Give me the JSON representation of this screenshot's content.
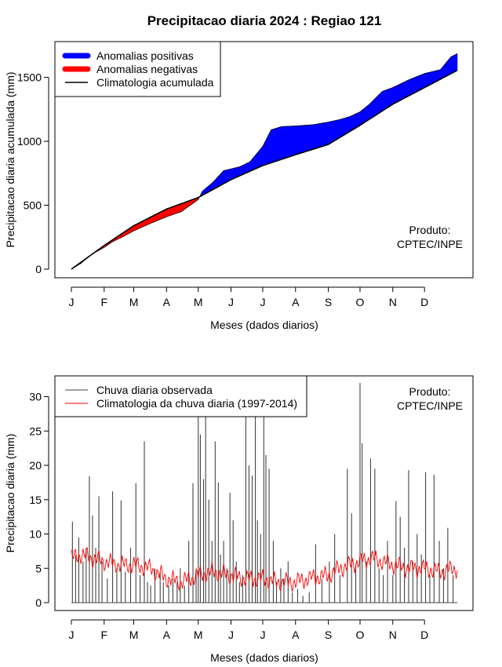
{
  "title": "Precipitacao diaria 2024 : Regiao 121",
  "colors": {
    "positive": "#0000ff",
    "negative": "#ff0000",
    "observed": "#444444",
    "climatology": "#ff0000",
    "line": "#000000"
  },
  "chart_data": [
    {
      "type": "area",
      "xlabel": "Meses (dados diarios)",
      "ylabel": "Precipitacao diaria acumulada (mm)",
      "month_ticks": [
        "J",
        "F",
        "M",
        "A",
        "M",
        "J",
        "J",
        "A",
        "S",
        "O",
        "N",
        "D"
      ],
      "month_start_days": [
        1,
        32,
        60,
        91,
        121,
        152,
        182,
        213,
        244,
        274,
        305,
        335
      ],
      "xlim": [
        1,
        366
      ],
      "ylim": [
        0,
        1700
      ],
      "yticks": [
        0,
        500,
        1000,
        1500
      ],
      "legend_position": "top-left",
      "legend": [
        "Anomalias positivas",
        "Anomalias negativas",
        "Climatologia acumulada"
      ],
      "annotation": [
        "Produto:",
        "CPTEC/INPE"
      ],
      "climatology_cumulative": {
        "day": [
          1,
          32,
          60,
          91,
          121,
          152,
          182,
          213,
          244,
          274,
          305,
          335,
          366
        ],
        "value": [
          0,
          185,
          340,
          470,
          560,
          700,
          810,
          895,
          975,
          1125,
          1290,
          1420,
          1555
        ]
      },
      "observed_cumulative": {
        "day": [
          1,
          10,
          20,
          32,
          40,
          50,
          60,
          75,
          91,
          105,
          121,
          125,
          135,
          145,
          160,
          170,
          182,
          190,
          200,
          213,
          230,
          244,
          255,
          265,
          274,
          283,
          295,
          305,
          320,
          335,
          350,
          360,
          366
        ],
        "value": [
          0,
          45,
          115,
          170,
          215,
          255,
          300,
          355,
          410,
          450,
          545,
          610,
          680,
          770,
          800,
          840,
          960,
          1090,
          1115,
          1120,
          1130,
          1150,
          1170,
          1195,
          1230,
          1290,
          1390,
          1420,
          1480,
          1530,
          1560,
          1660,
          1685
        ]
      }
    },
    {
      "type": "bar",
      "xlabel": "Meses (dados diarios)",
      "ylabel": "Precipitacao diaria (mm)",
      "month_ticks": [
        "J",
        "F",
        "M",
        "A",
        "M",
        "J",
        "J",
        "A",
        "S",
        "O",
        "N",
        "D"
      ],
      "month_start_days": [
        1,
        32,
        60,
        91,
        121,
        152,
        182,
        213,
        244,
        274,
        305,
        335
      ],
      "xlim": [
        1,
        366
      ],
      "ylim": [
        0,
        32
      ],
      "yticks": [
        0,
        5,
        10,
        15,
        20,
        25,
        30
      ],
      "legend_position": "top-left",
      "legend": [
        "Chuva diaria observada",
        "Climatologia da chuva diaria (1997-2014)"
      ],
      "annotation": [
        "Produto:",
        "CPTEC/INPE"
      ],
      "observed_daily": {
        "day": [
          2,
          5,
          8,
          12,
          15,
          18,
          21,
          24,
          27,
          30,
          35,
          40,
          44,
          48,
          52,
          57,
          62,
          66,
          70,
          73,
          76,
          80,
          85,
          88,
          93,
          97,
          101,
          104,
          108,
          112,
          116,
          119,
          121,
          123,
          126,
          128,
          131,
          134,
          137,
          140,
          142,
          145,
          148,
          151,
          154,
          157,
          160,
          163,
          166,
          169,
          172,
          175,
          177,
          180,
          183,
          185,
          188,
          192,
          195,
          199,
          202,
          206,
          210,
          215,
          220,
          226,
          232,
          238,
          245,
          250,
          255,
          262,
          266,
          270,
          274,
          276,
          280,
          284,
          288,
          292,
          296,
          300,
          305,
          308,
          312,
          316,
          320,
          324,
          328,
          332,
          336,
          340,
          344,
          349,
          353,
          357,
          362
        ],
        "value": [
          11.8,
          7.0,
          9.5,
          6.0,
          8.0,
          18.4,
          12.7,
          8.0,
          15.5,
          6.0,
          3.5,
          16.2,
          5.0,
          14.9,
          4.5,
          8.0,
          17.4,
          4.0,
          23.5,
          3.0,
          2.5,
          5.0,
          4.5,
          3.0,
          2.5,
          3.5,
          3.0,
          5.0,
          2.5,
          9.0,
          17.4,
          5.0,
          28.0,
          24.5,
          18.0,
          28.0,
          15.0,
          9.0,
          23.5,
          17.5,
          7.0,
          9.0,
          5.0,
          16.0,
          12.0,
          6.0,
          3.0,
          4.0,
          28.0,
          20.0,
          18.5,
          28.0,
          12.0,
          10.0,
          28.0,
          21.5,
          19.5,
          9.0,
          3.0,
          5.0,
          3.5,
          6.0,
          1.5,
          2.0,
          1.0,
          1.5,
          8.5,
          3.5,
          6.0,
          10.0,
          4.0,
          19.5,
          13.0,
          5.5,
          32.6,
          23.2,
          6.0,
          21.0,
          19.5,
          5.0,
          4.0,
          9.0,
          4.0,
          14.8,
          12.5,
          8.0,
          19.3,
          6.0,
          10.0,
          7.0,
          19.0,
          4.0,
          18.6,
          9.0,
          5.0,
          10.9,
          4.0
        ]
      },
      "climatology_daily": {
        "day": [
          1,
          10,
          20,
          32,
          45,
          60,
          75,
          91,
          105,
          121,
          135,
          152,
          165,
          182,
          195,
          213,
          225,
          244,
          255,
          274,
          285,
          305,
          320,
          335,
          350,
          366
        ],
        "value": [
          6.5,
          7.0,
          6.5,
          6.0,
          5.5,
          5.5,
          5.0,
          3.5,
          3.0,
          4.0,
          4.5,
          4.0,
          3.5,
          3.5,
          3.0,
          3.0,
          3.5,
          4.0,
          5.0,
          6.0,
          6.5,
          5.5,
          5.0,
          5.0,
          4.5,
          5.0
        ]
      }
    }
  ]
}
